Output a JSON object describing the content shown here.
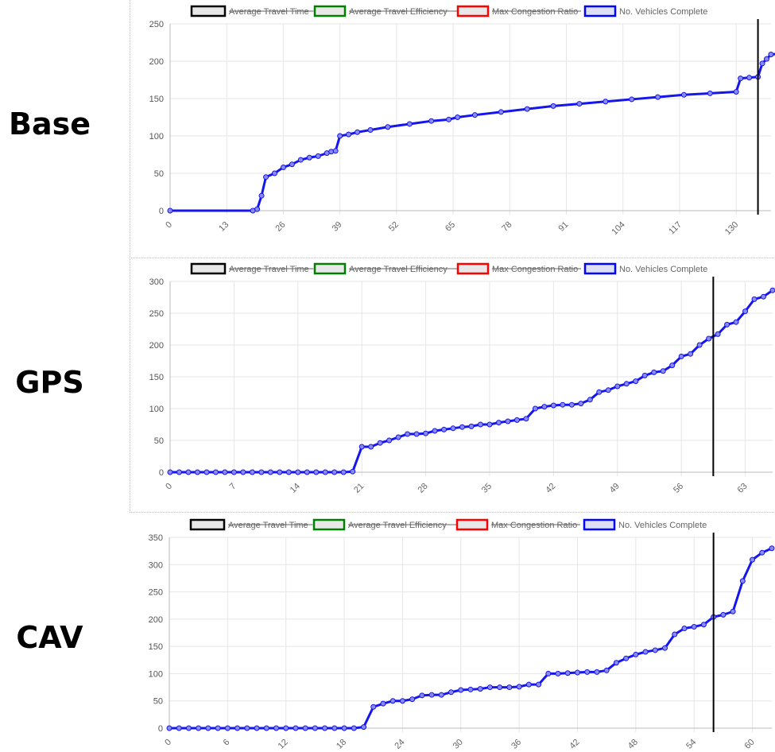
{
  "labels": {
    "base": "Base",
    "gps": "GPS",
    "cav": "CAV"
  },
  "legend": [
    {
      "label": "Average Travel Time",
      "color": "#000000",
      "hidden": true
    },
    {
      "label": "Average Travel Efficiency",
      "color": "#008000",
      "hidden": true
    },
    {
      "label": "Max Congestion Ratio",
      "color": "#ff0000",
      "hidden": true
    },
    {
      "label": "No. Vehicles Complete",
      "color": "#0000ff",
      "hidden": false
    }
  ],
  "colors": {
    "series": "#1515ee",
    "marker_line": "#000000",
    "grid": "#e6e6e6"
  },
  "chart_data": [
    {
      "type": "line",
      "panel": "base",
      "xlim": [
        0,
        138
      ],
      "ylim": [
        0,
        250
      ],
      "xticks": [
        0,
        13,
        26,
        39,
        52,
        65,
        78,
        91,
        104,
        117,
        130
      ],
      "yticks": [
        0,
        50,
        100,
        150,
        200,
        250
      ],
      "marker_x": 135,
      "series": [
        {
          "name": "No. Vehicles Complete",
          "points": [
            [
              0,
              0
            ],
            [
              19,
              0
            ],
            [
              20,
              2
            ],
            [
              21,
              20
            ],
            [
              22,
              45
            ],
            [
              24,
              50
            ],
            [
              26,
              58
            ],
            [
              28,
              62
            ],
            [
              30,
              68
            ],
            [
              32,
              71
            ],
            [
              34,
              73
            ],
            [
              36,
              77
            ],
            [
              37,
              79
            ],
            [
              38,
              80
            ],
            [
              39,
              100
            ],
            [
              41,
              102
            ],
            [
              43,
              105
            ],
            [
              46,
              108
            ],
            [
              50,
              112
            ],
            [
              55,
              116
            ],
            [
              60,
              120
            ],
            [
              64,
              122
            ],
            [
              66,
              125
            ],
            [
              70,
              128
            ],
            [
              76,
              132
            ],
            [
              82,
              136
            ],
            [
              88,
              140
            ],
            [
              94,
              143
            ],
            [
              100,
              146
            ],
            [
              106,
              149
            ],
            [
              112,
              152
            ],
            [
              118,
              155
            ],
            [
              124,
              157
            ],
            [
              130,
              159
            ],
            [
              131,
              177
            ],
            [
              133,
              178
            ],
            [
              135,
              179
            ],
            [
              136,
              197
            ],
            [
              137,
              203
            ],
            [
              138,
              209
            ],
            [
              140,
              210
            ]
          ]
        }
      ]
    },
    {
      "type": "line",
      "panel": "gps",
      "xlim": [
        0,
        66
      ],
      "ylim": [
        0,
        300
      ],
      "xticks": [
        0,
        7,
        14,
        21,
        28,
        35,
        42,
        49,
        56,
        63
      ],
      "yticks": [
        0,
        50,
        100,
        150,
        200,
        250,
        300
      ],
      "marker_x": 59.5,
      "series": [
        {
          "name": "No. Vehicles Complete",
          "points": [
            [
              0,
              0
            ],
            [
              1,
              0
            ],
            [
              2,
              0
            ],
            [
              3,
              0
            ],
            [
              4,
              0
            ],
            [
              5,
              0
            ],
            [
              6,
              0
            ],
            [
              7,
              0
            ],
            [
              8,
              0
            ],
            [
              9,
              0
            ],
            [
              10,
              0
            ],
            [
              11,
              0
            ],
            [
              12,
              0
            ],
            [
              13,
              0
            ],
            [
              14,
              0
            ],
            [
              15,
              0
            ],
            [
              16,
              0
            ],
            [
              17,
              0
            ],
            [
              18,
              0
            ],
            [
              19,
              0
            ],
            [
              20,
              1
            ],
            [
              21,
              40
            ],
            [
              22,
              40
            ],
            [
              23,
              46
            ],
            [
              24,
              50
            ],
            [
              25,
              55
            ],
            [
              26,
              60
            ],
            [
              27,
              60
            ],
            [
              28,
              61
            ],
            [
              29,
              65
            ],
            [
              30,
              67
            ],
            [
              31,
              69
            ],
            [
              32,
              71
            ],
            [
              33,
              72
            ],
            [
              34,
              75
            ],
            [
              35,
              75
            ],
            [
              36,
              78
            ],
            [
              37,
              80
            ],
            [
              38,
              82
            ],
            [
              39,
              84
            ],
            [
              40,
              100
            ],
            [
              41,
              103
            ],
            [
              42,
              105
            ],
            [
              43,
              106
            ],
            [
              44,
              106
            ],
            [
              45,
              108
            ],
            [
              46,
              114
            ],
            [
              47,
              126
            ],
            [
              48,
              129
            ],
            [
              49,
              135
            ],
            [
              50,
              139
            ],
            [
              51,
              143
            ],
            [
              52,
              152
            ],
            [
              53,
              157
            ],
            [
              54,
              159
            ],
            [
              55,
              168
            ],
            [
              56,
              182
            ],
            [
              57,
              186
            ],
            [
              58,
              200
            ],
            [
              59,
              210
            ],
            [
              60,
              217
            ],
            [
              61,
              232
            ],
            [
              62,
              236
            ],
            [
              63,
              253
            ],
            [
              64,
              272
            ],
            [
              65,
              276
            ],
            [
              66,
              286
            ]
          ]
        }
      ]
    },
    {
      "type": "line",
      "panel": "cav",
      "xlim": [
        0,
        62
      ],
      "ylim": [
        0,
        350
      ],
      "xticks": [
        0,
        6,
        12,
        18,
        24,
        30,
        36,
        42,
        48,
        54,
        60
      ],
      "yticks": [
        0,
        50,
        100,
        150,
        200,
        250,
        300,
        350
      ],
      "marker_x": 56,
      "series": [
        {
          "name": "No. Vehicles Complete",
          "points": [
            [
              0,
              0
            ],
            [
              1,
              0
            ],
            [
              2,
              0
            ],
            [
              3,
              0
            ],
            [
              4,
              0
            ],
            [
              5,
              0
            ],
            [
              6,
              0
            ],
            [
              7,
              0
            ],
            [
              8,
              0
            ],
            [
              9,
              0
            ],
            [
              10,
              0
            ],
            [
              11,
              0
            ],
            [
              12,
              0
            ],
            [
              13,
              0
            ],
            [
              14,
              0
            ],
            [
              15,
              0
            ],
            [
              16,
              0
            ],
            [
              17,
              0
            ],
            [
              18,
              0
            ],
            [
              19,
              0
            ],
            [
              20,
              2
            ],
            [
              21,
              39
            ],
            [
              22,
              45
            ],
            [
              23,
              50
            ],
            [
              24,
              50
            ],
            [
              25,
              53
            ],
            [
              26,
              60
            ],
            [
              27,
              61
            ],
            [
              28,
              61
            ],
            [
              29,
              66
            ],
            [
              30,
              70
            ],
            [
              31,
              71
            ],
            [
              32,
              72
            ],
            [
              33,
              75
            ],
            [
              34,
              75
            ],
            [
              35,
              75
            ],
            [
              36,
              76
            ],
            [
              37,
              80
            ],
            [
              38,
              80
            ],
            [
              39,
              100
            ],
            [
              40,
              100
            ],
            [
              41,
              101
            ],
            [
              42,
              102
            ],
            [
              43,
              103
            ],
            [
              44,
              103
            ],
            [
              45,
              106
            ],
            [
              46,
              120
            ],
            [
              47,
              128
            ],
            [
              48,
              135
            ],
            [
              49,
              140
            ],
            [
              50,
              143
            ],
            [
              51,
              147
            ],
            [
              52,
              172
            ],
            [
              53,
              183
            ],
            [
              54,
              186
            ],
            [
              55,
              190
            ],
            [
              56,
              204
            ],
            [
              57,
              208
            ],
            [
              58,
              214
            ],
            [
              59,
              270
            ],
            [
              60,
              309
            ],
            [
              61,
              322
            ],
            [
              62,
              330
            ]
          ]
        }
      ]
    }
  ]
}
